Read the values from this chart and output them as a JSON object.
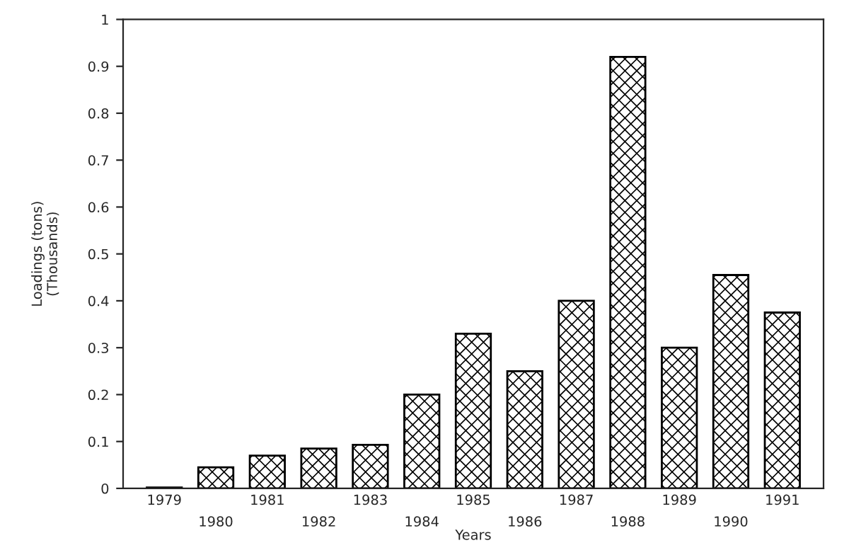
{
  "chart_data": {
    "type": "bar",
    "xlabel": "Years",
    "ylabel": "Loadings (tons)\n(Thousands)",
    "categories": [
      "1979",
      "1980",
      "1981",
      "1982",
      "1983",
      "1984",
      "1985",
      "1986",
      "1987",
      "1988",
      "1989",
      "1990",
      "1991"
    ],
    "values": [
      0.002,
      0.045,
      0.07,
      0.085,
      0.093,
      0.2,
      0.33,
      0.25,
      0.4,
      0.92,
      0.3,
      0.455,
      0.375
    ],
    "color": "#000000",
    "ylim": [
      0,
      1
    ],
    "yticks": [
      0,
      0.1,
      0.2,
      0.3,
      0.4,
      0.5,
      0.6,
      0.7,
      0.8,
      0.9,
      1
    ],
    "grid": false
  }
}
